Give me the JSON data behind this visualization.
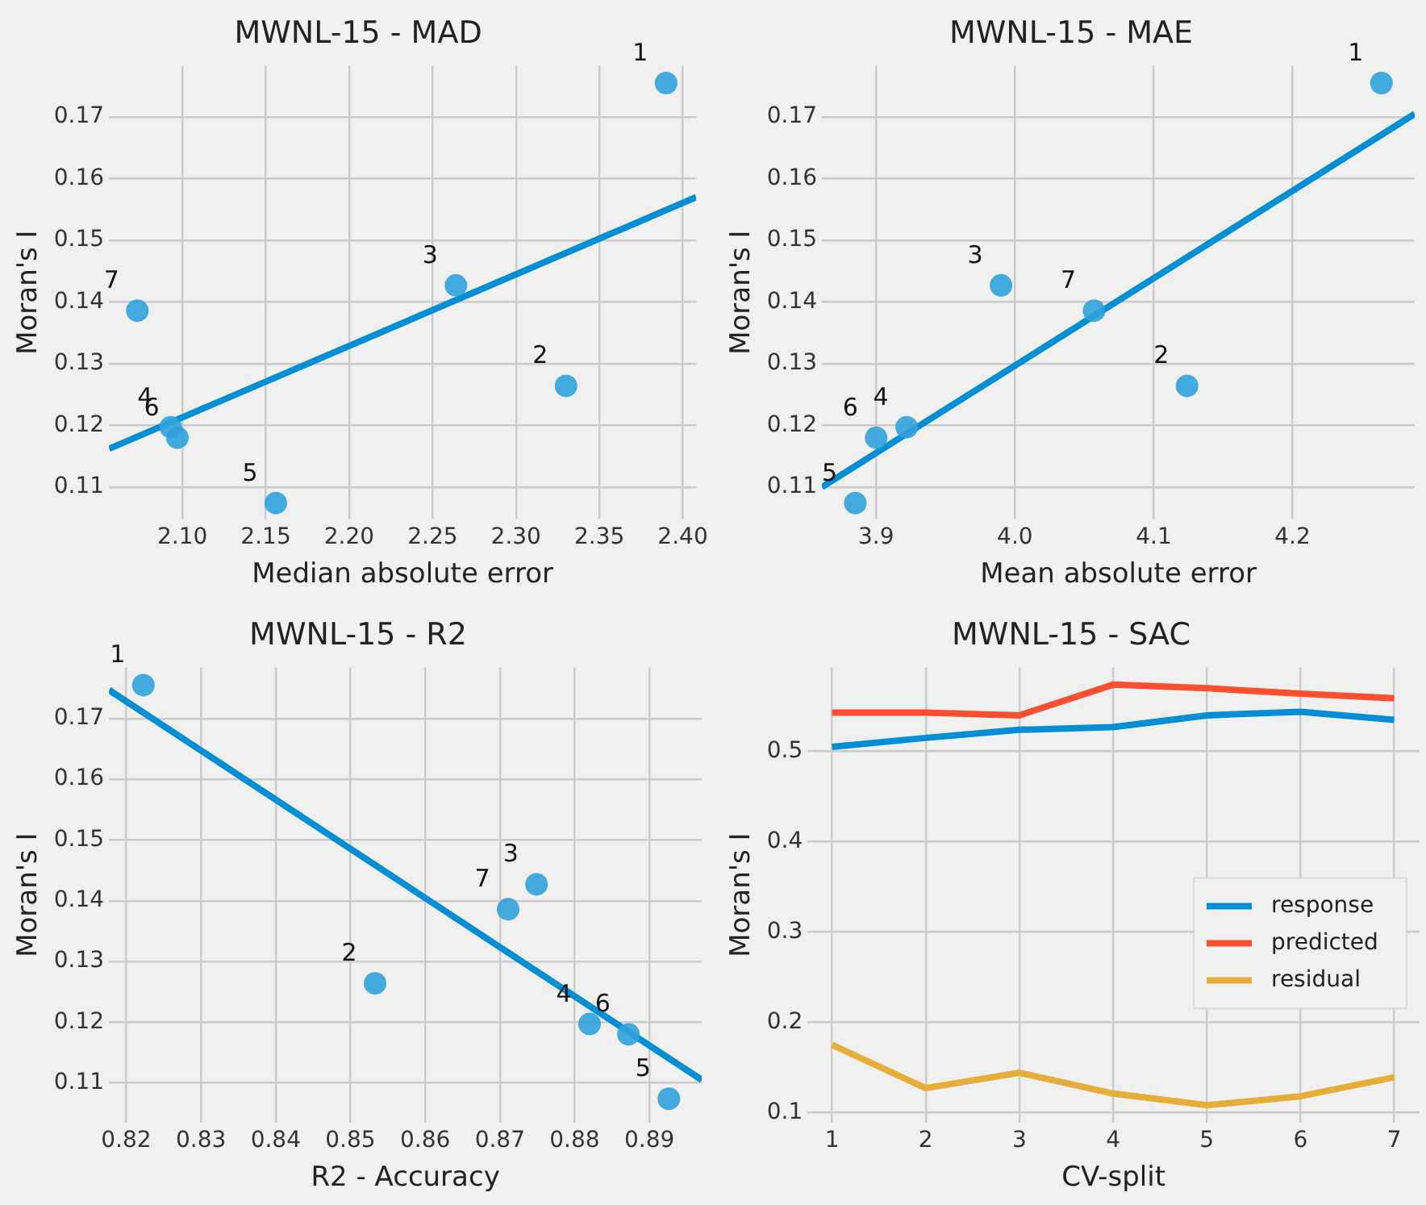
{
  "chart_data": [
    {
      "type": "scatter",
      "title": "MWNL-15 - MAD",
      "xlabel": "Median absolute error",
      "ylabel": "Moran's I",
      "grid": true,
      "legend": false,
      "xlim": [
        2.056,
        2.408
      ],
      "ylim": [
        0.1048,
        0.1783
      ],
      "xticks": [
        {
          "value": 2.1,
          "label": "2.10"
        },
        2.15,
        {
          "value": 2.2,
          "label": "2.20"
        },
        2.25,
        {
          "value": 2.3,
          "label": "2.30"
        },
        2.35,
        {
          "value": 2.4,
          "label": "2.40"
        }
      ],
      "yticks": [
        0.11,
        0.12,
        0.13,
        0.14,
        0.15,
        0.16,
        0.17
      ],
      "series": [
        {
          "marker": "circle",
          "color": "#30a2da",
          "x": [
            2.39,
            2.33,
            2.264,
            2.093,
            2.156,
            2.097,
            2.073
          ],
          "values": [
            0.1755,
            0.1264,
            0.1427,
            0.1197,
            0.1074,
            0.118,
            0.1386
          ]
        },
        {
          "type": "line",
          "color": "#008fd5",
          "x": [
            2.056,
            2.408
          ],
          "values": [
            0.1162,
            0.157
          ]
        }
      ],
      "annotations": [
        {
          "text": "1",
          "x": 2.39,
          "y": 0.1755
        },
        {
          "text": "2",
          "x": 2.33,
          "y": 0.1264
        },
        {
          "text": "3",
          "x": 2.264,
          "y": 0.1427
        },
        {
          "text": "4",
          "x": 2.093,
          "y": 0.1197
        },
        {
          "text": "5",
          "x": 2.156,
          "y": 0.1074
        },
        {
          "text": "6",
          "x": 2.097,
          "y": 0.118
        },
        {
          "text": "7",
          "x": 2.073,
          "y": 0.1386
        }
      ]
    },
    {
      "type": "scatter",
      "title": "MWNL-15 - MAE",
      "xlabel": "Mean absolute error",
      "ylabel": "Moran's I",
      "grid": true,
      "legend": false,
      "xlim": [
        3.861,
        4.288
      ],
      "ylim": [
        0.1048,
        0.1783
      ],
      "xticks": [
        3.9,
        {
          "value": 4,
          "label": "4.0"
        },
        4.1,
        4.2
      ],
      "yticks": [
        0.11,
        0.12,
        0.13,
        0.14,
        0.15,
        0.16,
        0.17
      ],
      "series": [
        {
          "marker": "circle",
          "color": "#30a2da",
          "x": [
            4.264,
            4.124,
            3.99,
            3.922,
            3.885,
            3.9,
            4.057
          ],
          "values": [
            0.1755,
            0.1264,
            0.1427,
            0.1197,
            0.1074,
            0.118,
            0.1386
          ]
        },
        {
          "type": "line",
          "color": "#008fd5",
          "x": [
            3.861,
            4.288
          ],
          "values": [
            0.11,
            0.1705
          ]
        }
      ],
      "annotations": [
        {
          "text": "1",
          "x": 4.264,
          "y": 0.1755
        },
        {
          "text": "2",
          "x": 4.124,
          "y": 0.1264
        },
        {
          "text": "3",
          "x": 3.99,
          "y": 0.1427
        },
        {
          "text": "4",
          "x": 3.922,
          "y": 0.1197
        },
        {
          "text": "5",
          "x": 3.885,
          "y": 0.1074
        },
        {
          "text": "6",
          "x": 3.9,
          "y": 0.118
        },
        {
          "text": "7",
          "x": 4.057,
          "y": 0.1386
        }
      ]
    },
    {
      "type": "scatter",
      "title": "MWNL-15 - R2",
      "xlabel": "R2 - Accuracy",
      "ylabel": "Moran's I",
      "grid": true,
      "legend": false,
      "xlim": [
        0.8177,
        0.897
      ],
      "ylim": [
        0.1035,
        0.1784
      ],
      "xticks": [
        0.82,
        0.83,
        0.84,
        0.85,
        0.86,
        0.87,
        0.88,
        0.89
      ],
      "yticks": [
        0.11,
        0.12,
        0.13,
        0.14,
        0.15,
        0.16,
        0.17
      ],
      "series": [
        {
          "marker": "circle",
          "color": "#30a2da",
          "x": [
            0.8223,
            0.8533,
            0.8749,
            0.882,
            0.8926,
            0.8872,
            0.8711
          ],
          "values": [
            0.1755,
            0.1264,
            0.1427,
            0.1197,
            0.1074,
            0.118,
            0.1386
          ]
        },
        {
          "type": "line",
          "color": "#008fd5",
          "x": [
            0.8177,
            0.897
          ],
          "values": [
            0.1747,
            0.1105
          ]
        }
      ],
      "annotations": [
        {
          "text": "1",
          "x": 0.8223,
          "y": 0.1755
        },
        {
          "text": "2",
          "x": 0.8533,
          "y": 0.1264
        },
        {
          "text": "3",
          "x": 0.8749,
          "y": 0.1427
        },
        {
          "text": "4",
          "x": 0.882,
          "y": 0.1197
        },
        {
          "text": "5",
          "x": 0.8926,
          "y": 0.1074
        },
        {
          "text": "6",
          "x": 0.8872,
          "y": 0.118
        },
        {
          "text": "7",
          "x": 0.8711,
          "y": 0.1386
        }
      ]
    },
    {
      "type": "line",
      "title": "MWNL-15 - SAC",
      "xlabel": "CV-split",
      "ylabel": "Moran's I",
      "grid": true,
      "legend": "right",
      "x": [
        1,
        2,
        3,
        4,
        5,
        6,
        7
      ],
      "xlim": [
        0.74,
        7.27
      ],
      "ylim": [
        0.089,
        0.593
      ],
      "xticks": [
        1,
        2,
        3,
        4,
        5,
        6,
        7
      ],
      "yticks": [
        0.1,
        0.2,
        0.3,
        0.4,
        0.5
      ],
      "series": [
        {
          "name": "response",
          "color": "#008fd5",
          "values": [
            0.505,
            0.515,
            0.524,
            0.527,
            0.54,
            0.544,
            0.535
          ]
        },
        {
          "name": "predicted",
          "color": "#fc4f30",
          "values": [
            0.543,
            0.543,
            0.54,
            0.574,
            0.57,
            0.564,
            0.559
          ]
        },
        {
          "name": "residual",
          "color": "#e5ae38",
          "values": [
            0.175,
            0.127,
            0.144,
            0.121,
            0.108,
            0.118,
            0.139
          ]
        }
      ]
    }
  ]
}
